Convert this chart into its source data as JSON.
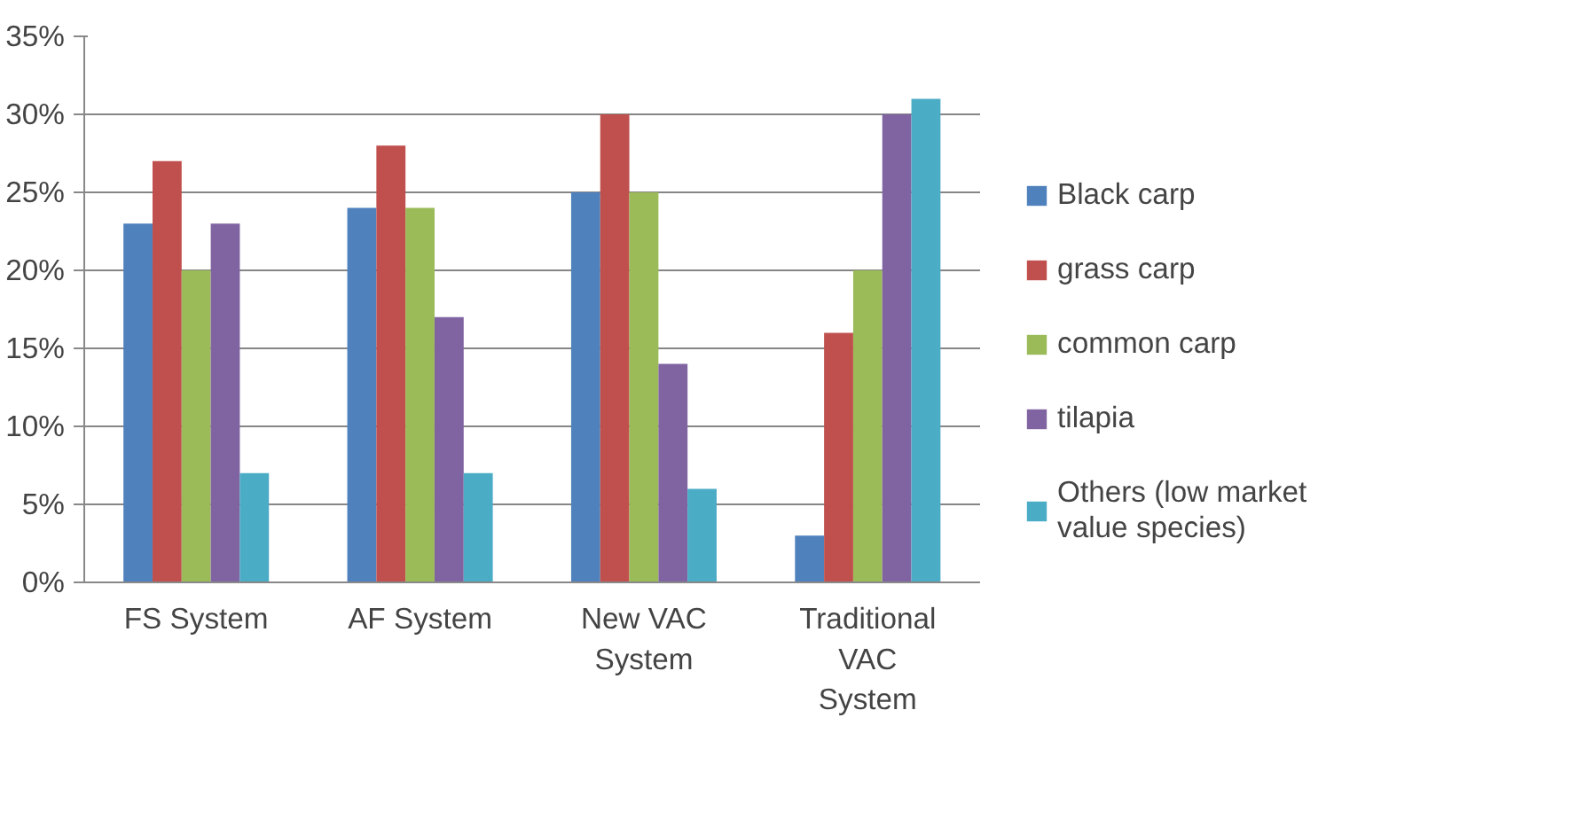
{
  "chart_data": {
    "type": "bar",
    "categories": [
      "FS System",
      "AF System",
      "New VAC System",
      "Traditional VAC System"
    ],
    "series": [
      {
        "name": "Black carp",
        "color": "#4f81bd",
        "values": [
          23,
          24,
          25,
          3
        ]
      },
      {
        "name": "grass carp",
        "color": "#c0504d",
        "values": [
          27,
          28,
          30,
          16
        ]
      },
      {
        "name": "common carp",
        "color": "#9bbb59",
        "values": [
          20,
          24,
          25,
          20
        ]
      },
      {
        "name": "tilapia",
        "color": "#8064a2",
        "values": [
          23,
          17,
          14,
          30
        ]
      },
      {
        "name": "Others (low market value species)",
        "color": "#4bacc6",
        "values": [
          7,
          7,
          6,
          31
        ]
      }
    ],
    "ylim": [
      0,
      35
    ],
    "yticks": [
      {
        "value": 0,
        "label": "0%"
      },
      {
        "value": 5,
        "label": "5%"
      },
      {
        "value": 10,
        "label": "10%"
      },
      {
        "value": 15,
        "label": "15%"
      },
      {
        "value": 20,
        "label": "20%"
      },
      {
        "value": 25,
        "label": "25%"
      },
      {
        "value": 30,
        "label": "30%"
      },
      {
        "value": 35,
        "label": "35%"
      }
    ],
    "grid": "y",
    "legend": "right"
  }
}
